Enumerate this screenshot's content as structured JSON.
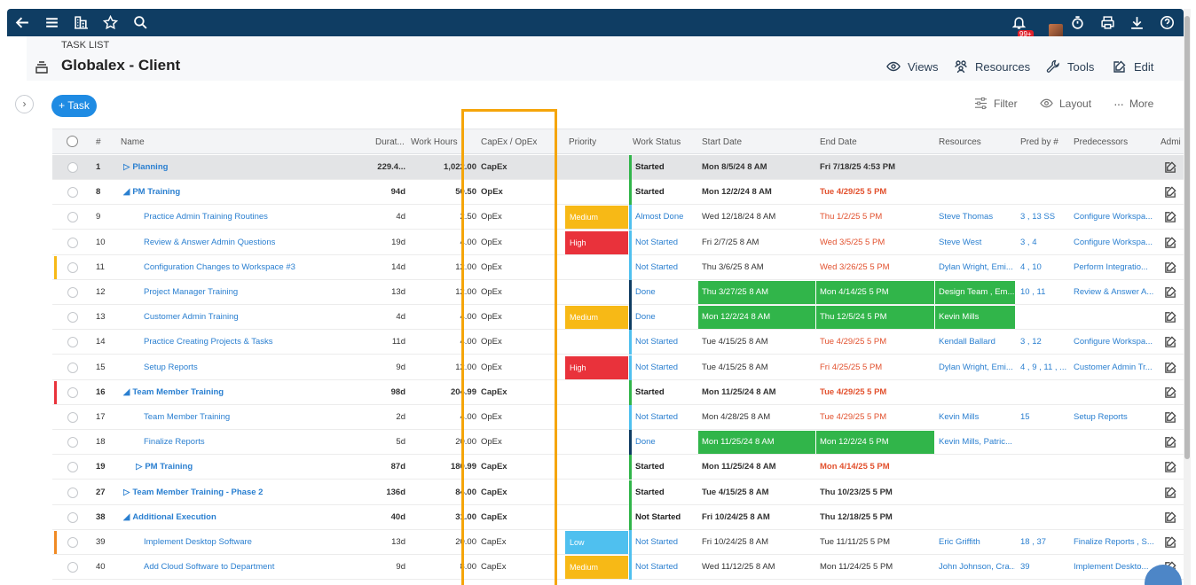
{
  "header": {
    "crumb": "TASK LIST",
    "title": "Globalex - Client",
    "actions": [
      {
        "label": "Views"
      },
      {
        "label": "Resources"
      },
      {
        "label": "Tools"
      },
      {
        "label": "Edit"
      }
    ],
    "badge": "99+"
  },
  "toolbar": {
    "add_task": "+ Task",
    "filter": "Filter",
    "layout": "Layout",
    "more": "More"
  },
  "columns": [
    "#",
    "Name",
    "Durat...",
    "Work Hours",
    "CapEx / OpEx",
    "Priority",
    "Work Status",
    "Start Date",
    "End Date",
    "Resources",
    "Pred by #",
    "Predecessors",
    "Admi"
  ],
  "colors": {
    "nav": "#0f3d63",
    "accent": "#1f8be3",
    "link": "#2a7fd0",
    "done_fill": "#31b54a",
    "high": "#e9323b",
    "medium": "#f7b916",
    "low": "#4fc0ef",
    "overdue": "#e2512e",
    "highlight_box": "#f5a50a"
  },
  "rows": [
    {
      "num": "1",
      "name": "Planning",
      "tri": "▷",
      "level": 0,
      "summary": true,
      "dur": "229.4...",
      "hours": "1,022.00",
      "capex": "CapEx",
      "priority": "",
      "status": "Started",
      "start": "Mon 8/5/24 8 AM",
      "end": "Fri 7/18/25 4:53 PM",
      "end_late": false,
      "resources": "",
      "predby": "",
      "preds": "",
      "selected": true
    },
    {
      "num": "8",
      "name": "PM Training",
      "tri": "◢",
      "level": 0,
      "summary": true,
      "dur": "94d",
      "hours": "50.50",
      "capex": "OpEx",
      "priority": "",
      "status": "Started",
      "start": "Mon 12/2/24 8 AM",
      "end": "Tue 4/29/25 5 PM",
      "end_late": true,
      "resources": "",
      "predby": "",
      "preds": ""
    },
    {
      "num": "9",
      "name": "Practice Admin Training Routines",
      "tri": "",
      "level": 2,
      "summary": false,
      "dur": "4d",
      "hours": "2.50",
      "capex": "OpEx",
      "priority": "Medium",
      "status": "Almost Done",
      "start": "Wed 12/18/24 8 AM",
      "end": "Thu 1/2/25 5 PM",
      "end_late": true,
      "resources": "Steve Thomas",
      "predby": "3 , 13 SS",
      "preds": "Configure Workspa..."
    },
    {
      "num": "10",
      "name": "Review & Answer Admin Questions",
      "tri": "",
      "level": 2,
      "summary": false,
      "dur": "19d",
      "hours": "4.00",
      "capex": "OpEx",
      "priority": "High",
      "status": "Not Started",
      "start": "Fri 2/7/25 8 AM",
      "end": "Wed 3/5/25 5 PM",
      "end_late": true,
      "resources": "Steve West",
      "predby": "3 , 4",
      "preds": "Configure Workspa..."
    },
    {
      "num": "11",
      "name": "Configuration Changes to Workspace #3",
      "tri": "",
      "level": 2,
      "summary": false,
      "dur": "14d",
      "hours": "12.00",
      "capex": "OpEx",
      "priority": "",
      "status": "Not Started",
      "start": "Thu 3/6/25 8 AM",
      "end": "Wed 3/26/25 5 PM",
      "end_late": true,
      "resources": "Dylan Wright, Emi...",
      "predby": "4 , 10",
      "preds": "Perform Integratio...",
      "flag": "#f7b916"
    },
    {
      "num": "12",
      "name": "Project Manager Training",
      "tri": "",
      "level": 2,
      "summary": false,
      "dur": "13d",
      "hours": "12.00",
      "capex": "OpEx",
      "priority": "",
      "status": "Done",
      "start": "Thu 3/27/25 8 AM",
      "end": "Mon 4/14/25 5 PM",
      "end_late": false,
      "resources": "Design Team , Em...",
      "predby": "10 , 11",
      "preds": "Review & Answer A...",
      "done": true,
      "res_fill": true
    },
    {
      "num": "13",
      "name": "Customer Admin Training",
      "tri": "",
      "level": 2,
      "summary": false,
      "dur": "4d",
      "hours": "4.00",
      "capex": "OpEx",
      "priority": "Medium",
      "status": "Done",
      "start": "Mon 12/2/24 8 AM",
      "end": "Thu 12/5/24 5 PM",
      "end_late": false,
      "resources": "Kevin Mills",
      "predby": "",
      "preds": "",
      "done": true,
      "res_fill": true
    },
    {
      "num": "14",
      "name": "Practice Creating Projects & Tasks",
      "tri": "",
      "level": 2,
      "summary": false,
      "dur": "11d",
      "hours": "4.00",
      "capex": "OpEx",
      "priority": "",
      "status": "Not Started",
      "start": "Tue 4/15/25 8 AM",
      "end": "Tue 4/29/25 5 PM",
      "end_late": true,
      "resources": "Kendall Ballard",
      "predby": "3 , 12",
      "preds": "Configure Workspa..."
    },
    {
      "num": "15",
      "name": "Setup Reports",
      "tri": "",
      "level": 2,
      "summary": false,
      "dur": "9d",
      "hours": "12.00",
      "capex": "OpEx",
      "priority": "High",
      "status": "Not Started",
      "start": "Tue 4/15/25 8 AM",
      "end": "Fri 4/25/25 5 PM",
      "end_late": true,
      "resources": "Dylan Wright, Emi...",
      "predby": "4 , 9 , 11 , ...",
      "preds": "Customer Admin Tr..."
    },
    {
      "num": "16",
      "name": "Team Member Training",
      "tri": "◢",
      "level": 0,
      "summary": true,
      "dur": "98d",
      "hours": "204.99",
      "capex": "CapEx",
      "priority": "",
      "status": "Started",
      "start": "Mon 11/25/24 8 AM",
      "end": "Tue 4/29/25 5 PM",
      "end_late": true,
      "resources": "",
      "predby": "",
      "preds": "",
      "flag": "#e9323b"
    },
    {
      "num": "17",
      "name": "Team Member Training",
      "tri": "",
      "level": 2,
      "summary": false,
      "dur": "2d",
      "hours": "4.00",
      "capex": "OpEx",
      "priority": "",
      "status": "Not Started",
      "start": "Mon 4/28/25 8 AM",
      "end": "Tue 4/29/25 5 PM",
      "end_late": true,
      "resources": "Kevin Mills",
      "predby": "15",
      "preds": "Setup Reports"
    },
    {
      "num": "18",
      "name": "Finalize Reports",
      "tri": "",
      "level": 2,
      "summary": false,
      "dur": "5d",
      "hours": "20.00",
      "capex": "OpEx",
      "priority": "",
      "status": "Done",
      "start": "Mon 11/25/24 8 AM",
      "end": "Mon 12/2/24 5 PM",
      "end_late": false,
      "resources": "Kevin Mills, Patric...",
      "predby": "",
      "preds": "",
      "done": true
    },
    {
      "num": "19",
      "name": "PM Training",
      "tri": "▷",
      "level": 1,
      "summary": true,
      "dur": "87d",
      "hours": "180.99",
      "capex": "CapEx",
      "priority": "",
      "status": "Started",
      "start": "Mon 11/25/24 8 AM",
      "end": "Mon 4/14/25 5 PM",
      "end_late": true,
      "resources": "",
      "predby": "",
      "preds": ""
    },
    {
      "num": "27",
      "name": "Team Member Training - Phase 2",
      "tri": "▷",
      "level": 0,
      "summary": true,
      "dur": "136d",
      "hours": "84.00",
      "capex": "CapEx",
      "priority": "",
      "status": "Started",
      "start": "Tue 4/15/25 8 AM",
      "end": "Thu 10/23/25 5 PM",
      "end_late": false,
      "resources": "",
      "predby": "",
      "preds": ""
    },
    {
      "num": "38",
      "name": "Additional Execution",
      "tri": "◢",
      "level": 0,
      "summary": true,
      "dur": "40d",
      "hours": "31.00",
      "capex": "CapEx",
      "priority": "",
      "status": "Not Started",
      "start": "Fri 10/24/25 8 AM",
      "end": "Thu 12/18/25 5 PM",
      "end_late": false,
      "resources": "",
      "predby": "",
      "preds": ""
    },
    {
      "num": "39",
      "name": "Implement Desktop Software",
      "tri": "",
      "level": 2,
      "summary": false,
      "dur": "13d",
      "hours": "20.00",
      "capex": "CapEx",
      "priority": "Low",
      "status": "Not Started",
      "start": "Fri 10/24/25 8 AM",
      "end": "Tue 11/11/25 5 PM",
      "end_late": false,
      "resources": "Eric Griffith",
      "predby": "18 , 37",
      "preds": "Finalize Reports , S...",
      "flag": "#f08a24"
    },
    {
      "num": "40",
      "name": "Add Cloud Software to Department",
      "tri": "",
      "level": 2,
      "summary": false,
      "dur": "9d",
      "hours": "8.00",
      "capex": "CapEx",
      "priority": "Medium",
      "status": "Not Started",
      "start": "Wed 11/12/25 8 AM",
      "end": "Mon 11/24/25 5 PM",
      "end_late": false,
      "resources": "John Johnson, Cra...",
      "predby": "39",
      "preds": "Implement Deskto..."
    }
  ]
}
